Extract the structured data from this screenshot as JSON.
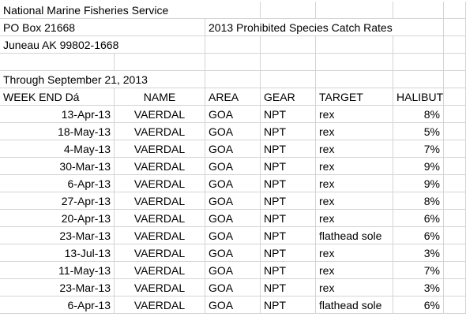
{
  "header": {
    "org": "National Marine Fisheries Service",
    "po_box": "PO Box 21668",
    "report_title": "2013 Prohibited Species Catch Rates",
    "city": "Juneau AK 99802-1668",
    "through": "Through September 21, 2013"
  },
  "columns": [
    "WEEK END Dá",
    "NAME",
    "AREA",
    "GEAR",
    "TARGET",
    "HALIBUT"
  ],
  "rows": [
    [
      "13-Apr-13",
      "VAERDAL",
      "GOA",
      "NPT",
      "rex",
      "8%"
    ],
    [
      "18-May-13",
      "VAERDAL",
      "GOA",
      "NPT",
      "rex",
      "5%"
    ],
    [
      "4-May-13",
      "VAERDAL",
      "GOA",
      "NPT",
      "rex",
      "7%"
    ],
    [
      "30-Mar-13",
      "VAERDAL",
      "GOA",
      "NPT",
      "rex",
      "9%"
    ],
    [
      "6-Apr-13",
      "VAERDAL",
      "GOA",
      "NPT",
      "rex",
      "9%"
    ],
    [
      "27-Apr-13",
      "VAERDAL",
      "GOA",
      "NPT",
      "rex",
      "8%"
    ],
    [
      "20-Apr-13",
      "VAERDAL",
      "GOA",
      "NPT",
      "rex",
      "6%"
    ],
    [
      "23-Mar-13",
      "VAERDAL",
      "GOA",
      "NPT",
      "flathead sole",
      "6%"
    ],
    [
      "13-Jul-13",
      "VAERDAL",
      "GOA",
      "NPT",
      "rex",
      "3%"
    ],
    [
      "11-May-13",
      "VAERDAL",
      "GOA",
      "NPT",
      "rex",
      "7%"
    ],
    [
      "23-Mar-13",
      "VAERDAL",
      "GOA",
      "NPT",
      "rex",
      "3%"
    ],
    [
      "6-Apr-13",
      "VAERDAL",
      "GOA",
      "NPT",
      "flathead sole",
      "6%"
    ]
  ]
}
